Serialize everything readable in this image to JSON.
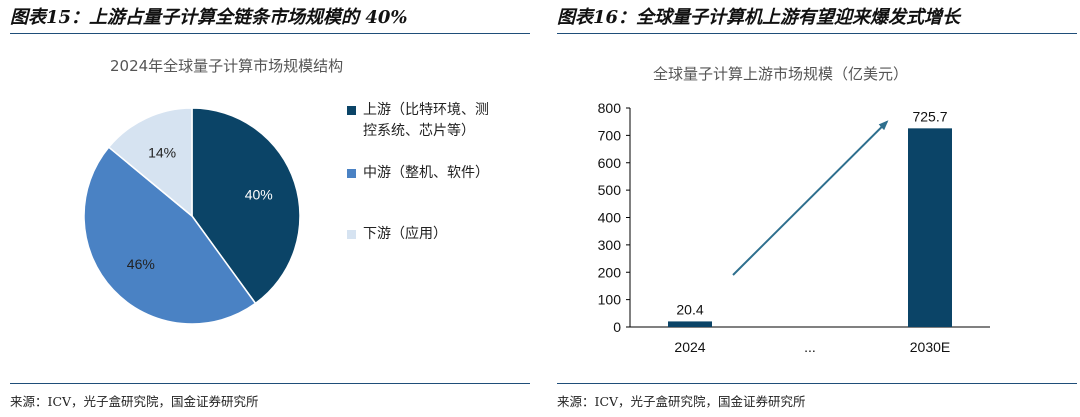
{
  "left": {
    "figure_title": "图表15：上游占量子计算全链条市场规模的 40%",
    "source": "来源：ICV，光子盒研究院，国金证券研究所",
    "chart_data": {
      "type": "pie",
      "title": "2024年全球量子计算市场规模结构",
      "unit": "%",
      "slices": [
        {
          "name": "上游（比特环境、测控系统、芯片等）",
          "value": 40,
          "label": "40%",
          "color": "#0b4467"
        },
        {
          "name": "中游（整机、软件）",
          "value": 46,
          "label": "46%",
          "color": "#4a82c4"
        },
        {
          "name": "下游（应用）",
          "value": 14,
          "label": "14%",
          "color": "#d6e3f1"
        }
      ],
      "legend_position": "right"
    }
  },
  "right": {
    "figure_title": "图表16：全球量子计算机上游有望迎来爆发式增长",
    "source": "来源：ICV，光子盒研究院，国金证券研究所",
    "chart_data": {
      "type": "bar",
      "title": "全球量子计算上游市场规模（亿美元）",
      "categories": [
        "2024",
        "...",
        "2030E"
      ],
      "values": [
        20.4,
        null,
        725.7
      ],
      "value_labels": [
        "20.4",
        "",
        "725.7"
      ],
      "ylim": [
        0,
        800
      ],
      "yticks": [
        0,
        100,
        200,
        300,
        400,
        500,
        600,
        700,
        800
      ],
      "grid": false,
      "bar_color": "#0b4467",
      "arrow_color": "#2e6f8e",
      "annotation": "upward trend arrow"
    }
  }
}
